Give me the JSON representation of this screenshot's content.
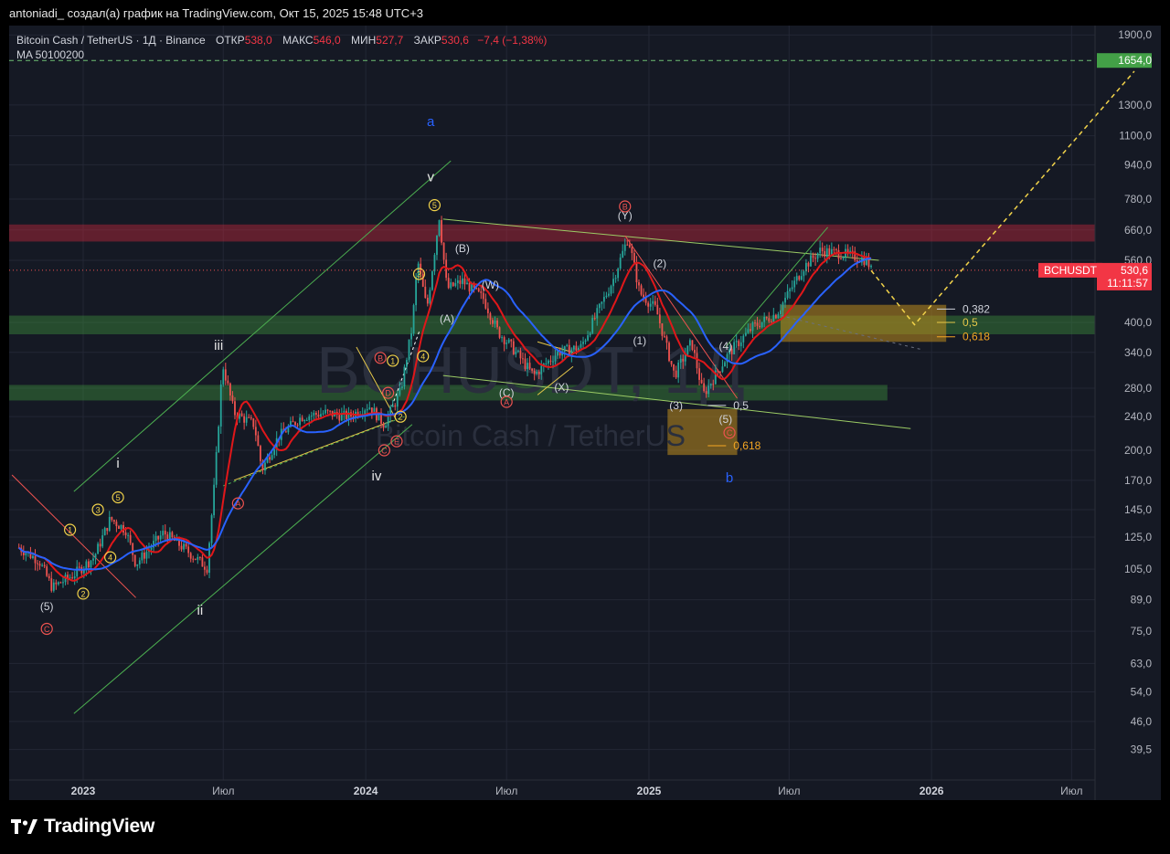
{
  "header": {
    "text": "antoniadi_ создал(а) график на TradingView.com, Окт 15, 2025 15:48 UTC+3"
  },
  "legend": {
    "symbol": "Bitcoin Cash / TetherUS · 1Д · Binance",
    "open_label": "ОТКР",
    "open": "538,0",
    "high_label": "МАКС",
    "high": "546,0",
    "low_label": "МИН",
    "low": "527,7",
    "close_label": "ЗАКР",
    "close": "530,6",
    "change": "−7,4 (−1,38%)",
    "ma": "MA 50100200"
  },
  "watermark": {
    "ticker": "BCHUSDT, 1Д",
    "name": "Bitcoin Cash / TetherUS"
  },
  "price_tag": {
    "ticker": "BCHUSDT",
    "price": "530,6",
    "timer": "11:11:57"
  },
  "level_tag": {
    "price": "1654,0"
  },
  "brand": {
    "name": "TradingView"
  },
  "colors": {
    "bg": "#151924",
    "up": "#26a69a",
    "down": "#ef5350",
    "ma_red": "#e0171a",
    "ma_blue": "#2962ff",
    "channel": "#4caf50",
    "fib": "#d4a017"
  },
  "chart_data": {
    "type": "candlestick",
    "scale": "log",
    "y_ticks": [
      "1900,0",
      "1300,0",
      "1100,0",
      "940,0",
      "780,0",
      "660,0",
      "560,0",
      "400,0",
      "340,0",
      "280,0",
      "240,0",
      "200,0",
      "170,0",
      "145,0",
      "125,0",
      "105,0",
      "89,0",
      "75,0",
      "63,0",
      "54,0",
      "46,0",
      "39,5"
    ],
    "x_ticks": [
      "2023",
      "Июл",
      "2024",
      "Июл",
      "2025",
      "Июл",
      "2026",
      "Июл"
    ],
    "close_path": [
      [
        "2022-10-10",
        118
      ],
      [
        "2022-11-05",
        110
      ],
      [
        "2022-11-22",
        95
      ],
      [
        "2022-12-20",
        102
      ],
      [
        "2023-01-15",
        112
      ],
      [
        "2023-02-05",
        138
      ],
      [
        "2023-02-25",
        130
      ],
      [
        "2023-03-10",
        108
      ],
      [
        "2023-04-15",
        128
      ],
      [
        "2023-05-10",
        118
      ],
      [
        "2023-06-10",
        106
      ],
      [
        "2023-06-20",
        170
      ],
      [
        "2023-06-30",
        320
      ],
      [
        "2023-07-15",
        245
      ],
      [
        "2023-08-10",
        230
      ],
      [
        "2023-08-20",
        180
      ],
      [
        "2023-09-10",
        215
      ],
      [
        "2023-10-10",
        240
      ],
      [
        "2023-11-10",
        245
      ],
      [
        "2023-12-10",
        240
      ],
      [
        "2024-01-05",
        255
      ],
      [
        "2024-01-25",
        230
      ],
      [
        "2024-02-15",
        275
      ],
      [
        "2024-03-01",
        390
      ],
      [
        "2024-03-08",
        560
      ],
      [
        "2024-03-20",
        430
      ],
      [
        "2024-04-05",
        710
      ],
      [
        "2024-04-15",
        480
      ],
      [
        "2024-05-05",
        500
      ],
      [
        "2024-06-01",
        455
      ],
      [
        "2024-06-20",
        380
      ],
      [
        "2024-07-05",
        355
      ],
      [
        "2024-08-05",
        300
      ],
      [
        "2024-09-05",
        340
      ],
      [
        "2024-10-05",
        350
      ],
      [
        "2024-11-15",
        500
      ],
      [
        "2024-12-05",
        635
      ],
      [
        "2024-12-20",
        470
      ],
      [
        "2025-01-10",
        430
      ],
      [
        "2025-02-03",
        300
      ],
      [
        "2025-02-25",
        360
      ],
      [
        "2025-03-12",
        270
      ],
      [
        "2025-04-15",
        340
      ],
      [
        "2025-05-15",
        390
      ],
      [
        "2025-06-15",
        420
      ],
      [
        "2025-07-20",
        540
      ],
      [
        "2025-08-10",
        590
      ],
      [
        "2025-09-10",
        580
      ],
      [
        "2025-10-10",
        560
      ],
      [
        "2025-10-15",
        530.6
      ]
    ],
    "wave_labels_primary": [
      "a",
      "b"
    ],
    "wave_labels_roman": [
      "i",
      "ii",
      "iii",
      "iv",
      "v"
    ],
    "wave_labels_minor": [
      "(5)",
      "(A)",
      "(B)",
      "(W)",
      "(C)",
      "(X)",
      "(Y)",
      "(1)",
      "(2)",
      "(3)",
      "(4)",
      "(5)"
    ],
    "wave_labels_circled": [
      "1",
      "2",
      "3",
      "4",
      "5",
      "A",
      "B",
      "C",
      "D",
      "E"
    ],
    "fib_levels": [
      {
        "label": "0,382",
        "value": 430
      },
      {
        "label": "0,5",
        "value": 400
      },
      {
        "label": "0,618",
        "value": 370
      },
      {
        "label": "0,5",
        "value": 255
      },
      {
        "label": "0,618",
        "value": 205
      }
    ],
    "resistance_zone": [
      620,
      680
    ],
    "support_zones": [
      [
        375,
        415
      ],
      [
        262,
        285
      ]
    ],
    "target_level": 1654.0
  }
}
